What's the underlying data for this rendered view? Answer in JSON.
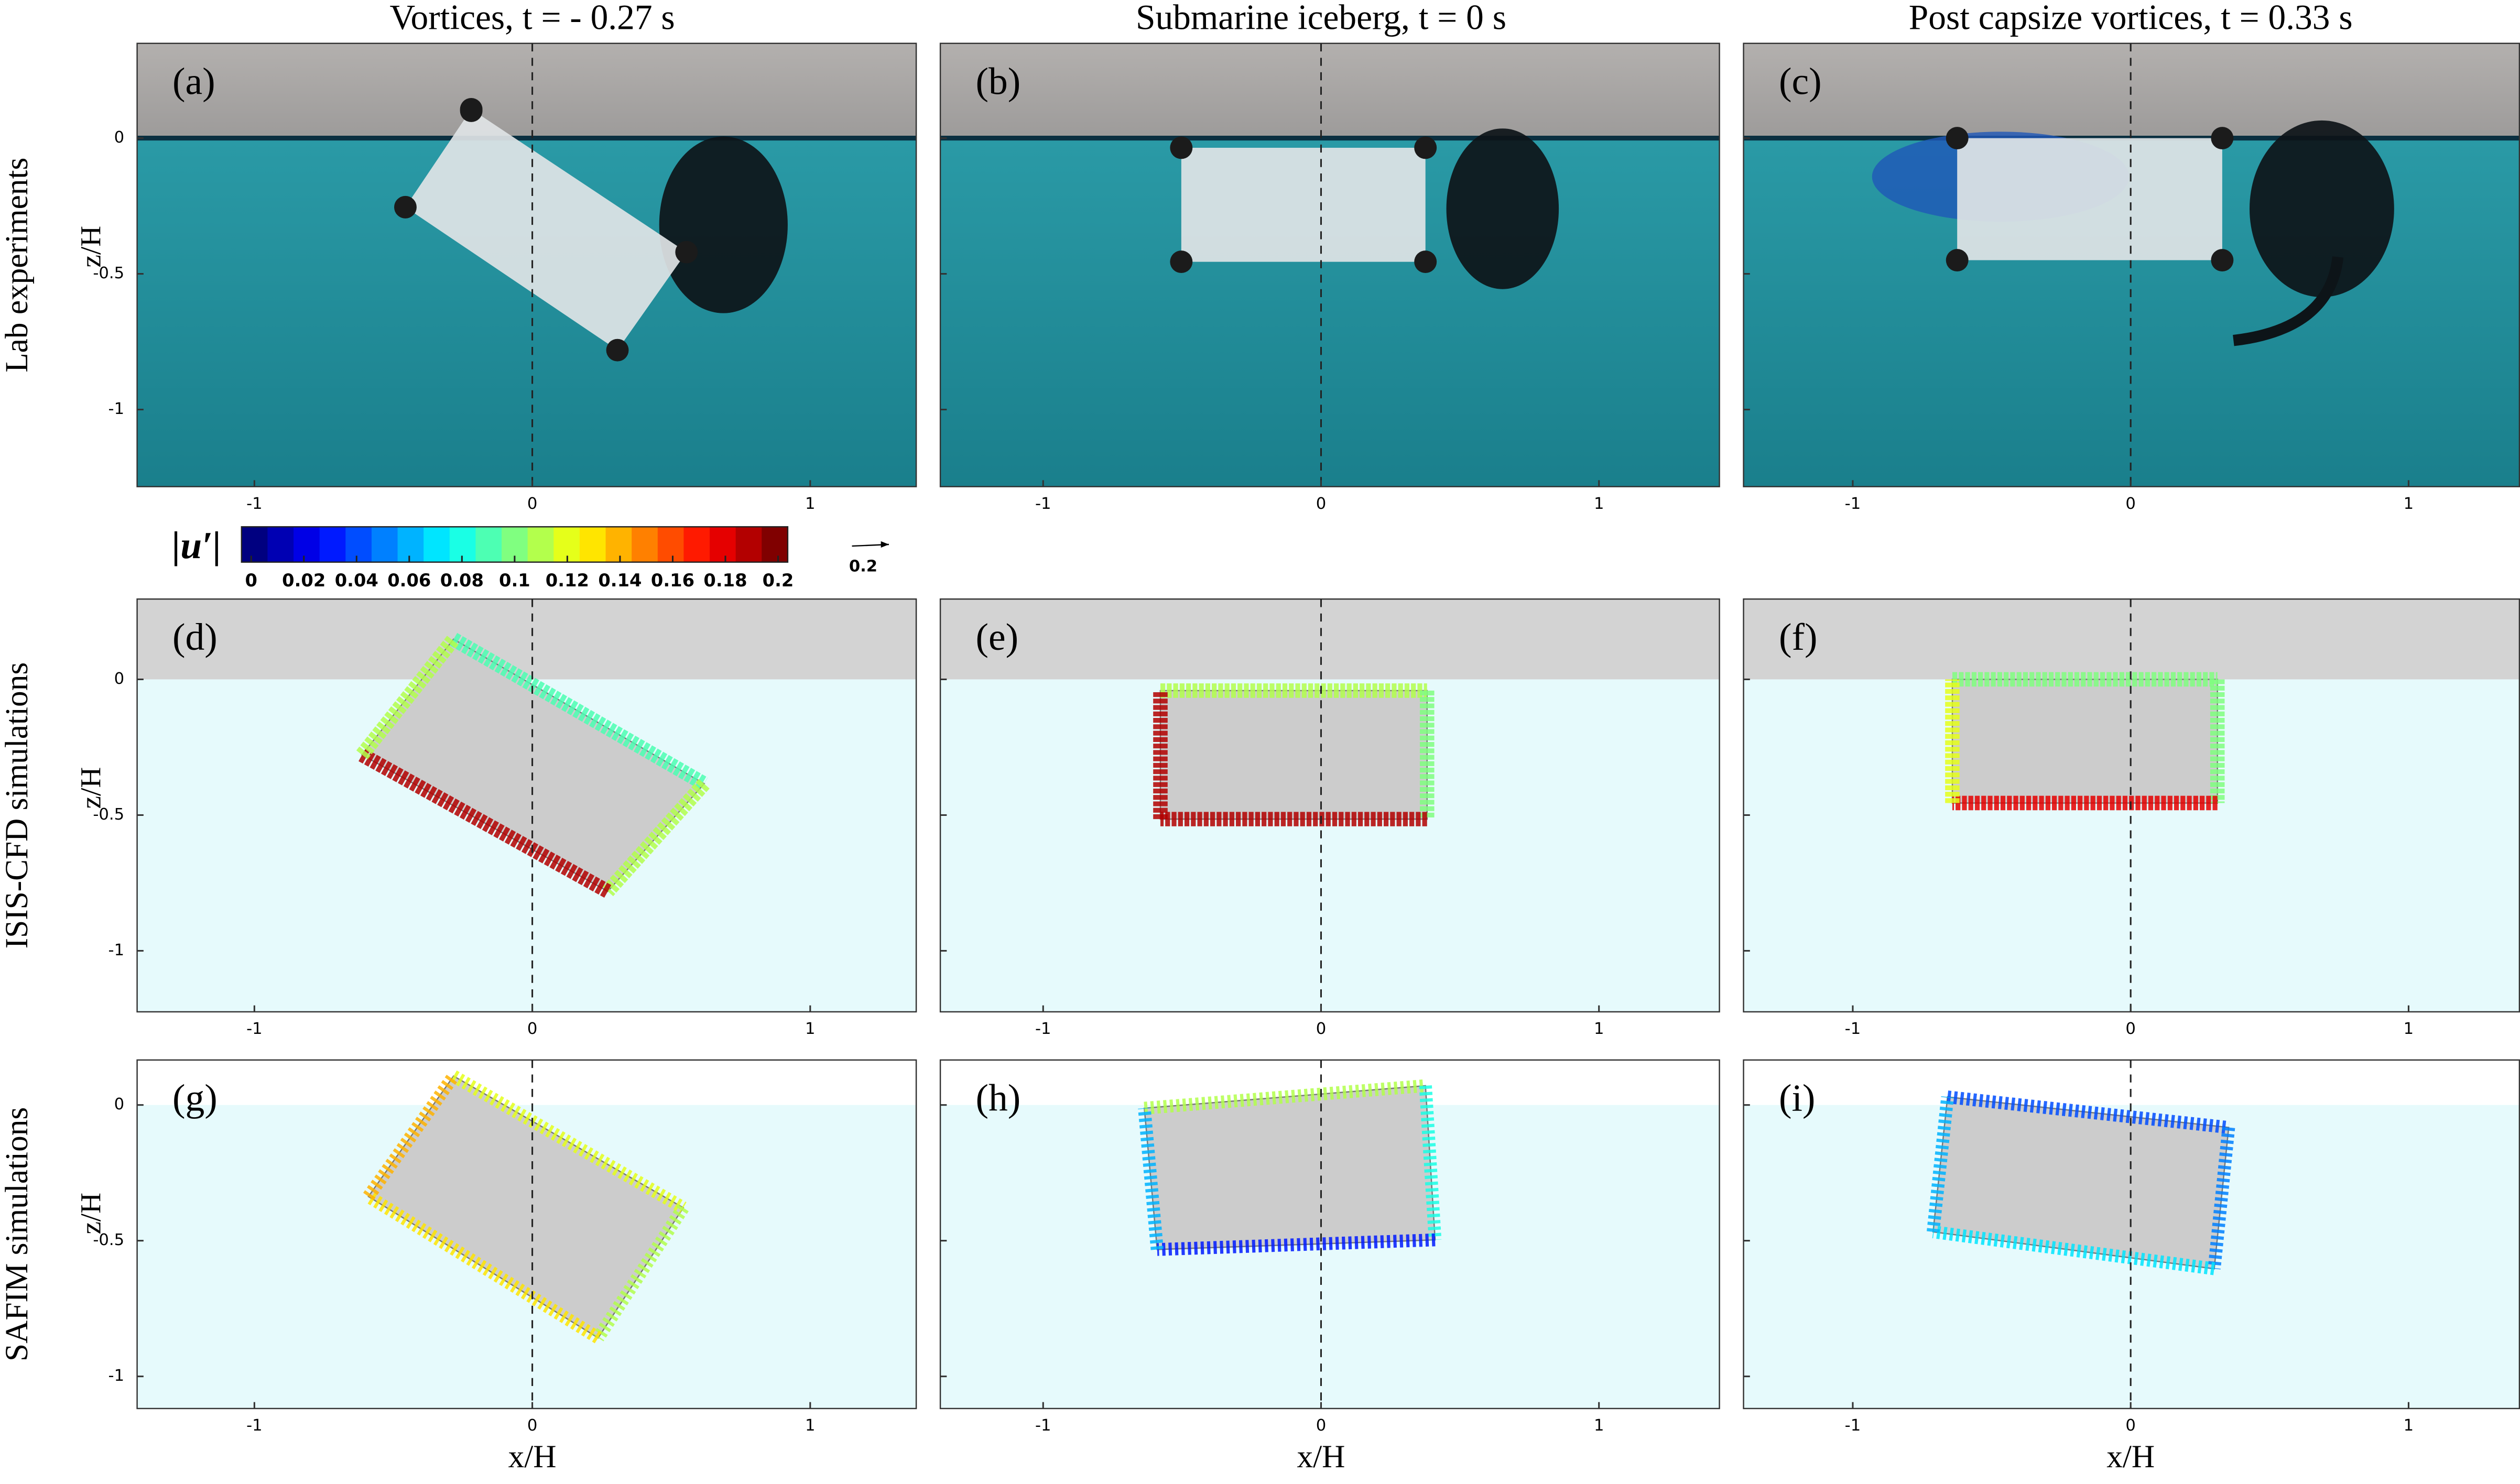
{
  "column_titles": [
    "Vortices, t = - 0.27 s",
    "Submarine iceberg, t = 0 s",
    "Post capsize vortices, t = 0.33 s"
  ],
  "row_labels": [
    "Lab experiments",
    "ISIS-CFD simulations",
    "SAFIM simulations"
  ],
  "panels": [
    [
      "(a)",
      "(b)",
      "(c)"
    ],
    [
      "(d)",
      "(e)",
      "(f)"
    ],
    [
      "(g)",
      "(h)",
      "(i)"
    ]
  ],
  "axes": {
    "x_label": "x/H",
    "z_label": "z/H",
    "x_ticks": [
      -1,
      0,
      1
    ],
    "z_ticks": [
      0,
      -0.5,
      -1
    ]
  },
  "colorbar": {
    "label": "|u′|",
    "ticks": [
      0,
      0.02,
      0.04,
      0.06,
      0.08,
      0.1,
      0.12,
      0.14,
      0.16,
      0.18,
      0.2
    ],
    "reference_arrow": "0.2"
  }
}
